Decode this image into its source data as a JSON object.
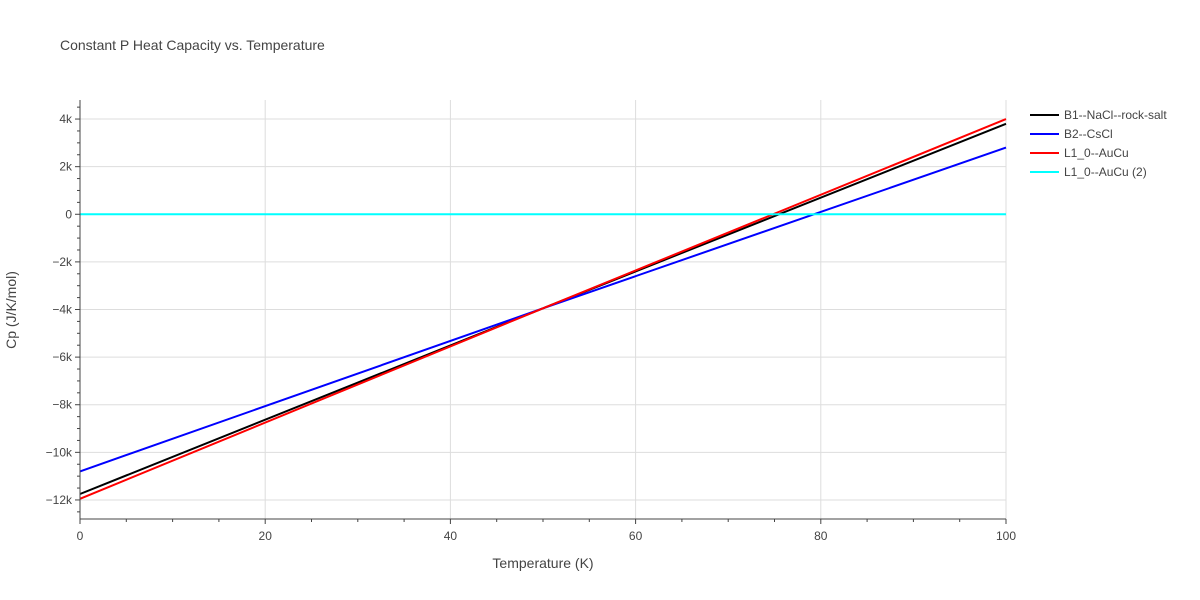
{
  "chart_data": {
    "type": "line",
    "title": "Constant P Heat Capacity vs. Temperature",
    "xlabel": "Temperature (K)",
    "ylabel": "Cp (J/K/mol)",
    "xlim": [
      0,
      100
    ],
    "ylim": [
      -12800,
      4800
    ],
    "x_ticks": [
      0,
      20,
      40,
      60,
      80,
      100
    ],
    "x_tick_labels": [
      "0",
      "20",
      "40",
      "60",
      "80",
      "100"
    ],
    "y_ticks": [
      -12000,
      -10000,
      -8000,
      -6000,
      -4000,
      -2000,
      0,
      2000,
      4000
    ],
    "y_tick_labels": [
      "−12k",
      "−10k",
      "−8k",
      "−6k",
      "−4k",
      "−2k",
      "0",
      "2k",
      "4k"
    ],
    "grid": true,
    "legend_position": "top-right",
    "series": [
      {
        "name": "B1--NaCl--rock-salt",
        "color": "#000000",
        "x": [
          0,
          50,
          100
        ],
        "y": [
          -11750,
          -3950,
          3800
        ]
      },
      {
        "name": "B2--CsCl",
        "color": "#0000ff",
        "x": [
          0,
          50,
          100
        ],
        "y": [
          -10800,
          -3950,
          2800
        ]
      },
      {
        "name": "L1_0--AuCu",
        "color": "#ff0000",
        "x": [
          0,
          50,
          100
        ],
        "y": [
          -11950,
          -3950,
          4000
        ]
      },
      {
        "name": "L1_0--AuCu (2)",
        "color": "#00ffff",
        "x": [
          0,
          50,
          100
        ],
        "y": [
          0,
          0,
          0
        ]
      }
    ]
  }
}
